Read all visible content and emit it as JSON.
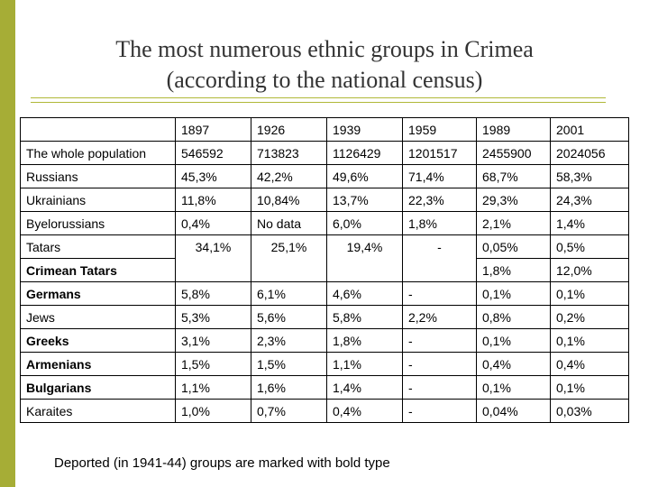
{
  "title": {
    "line1": "The most numerous ethnic groups in Crimea",
    "line2": "(according to the national census)"
  },
  "table": {
    "years": [
      "1897",
      "1926",
      "1939",
      "1959",
      "1989",
      "2001"
    ],
    "whole_population": {
      "label": "The whole population",
      "values": [
        "546592",
        "713823",
        "1126429",
        "1201517",
        "2455900",
        "2024056"
      ]
    },
    "russians": {
      "label": "Russians",
      "values": [
        "45,3%",
        "42,2%",
        "49,6%",
        "71,4%",
        "68,7%",
        "58,3%"
      ]
    },
    "ukrainians": {
      "label": "Ukrainians",
      "values": [
        "11,8%",
        "10,84%",
        "13,7%",
        "22,3%",
        "29,3%",
        "24,3%"
      ]
    },
    "byelorussians": {
      "label": "Byelorussians",
      "values": [
        "0,4%",
        "No data",
        "6,0%",
        "1,8%",
        "2,1%",
        "1,4%"
      ]
    },
    "tatars": {
      "label": "Tatars",
      "values": [
        "34,1%",
        "25,1%",
        "19,4%",
        "-",
        "0,05%",
        "0,5%"
      ]
    },
    "crimean_tatars": {
      "label": "Crimean Tatars",
      "values": [
        "1,8%",
        "12,0%"
      ]
    },
    "germans": {
      "label": "Germans",
      "values": [
        "5,8%",
        "6,1%",
        "4,6%",
        "-",
        "0,1%",
        "0,1%"
      ]
    },
    "jews": {
      "label": "Jews",
      "values": [
        "5,3%",
        "5,6%",
        "5,8%",
        "2,2%",
        "0,8%",
        "0,2%"
      ]
    },
    "greeks": {
      "label": "Greeks",
      "values": [
        "3,1%",
        "2,3%",
        "1,8%",
        "-",
        "0,1%",
        "0,1%"
      ]
    },
    "armenians": {
      "label": "Armenians",
      "values": [
        "1,5%",
        "1,5%",
        "1,1%",
        "-",
        "0,4%",
        "0,4%"
      ]
    },
    "bulgarians": {
      "label": "Bulgarians",
      "values": [
        "1,1%",
        "1,6%",
        "1,4%",
        "-",
        "0,1%",
        "0,1%"
      ]
    },
    "karaites": {
      "label": "Karaites",
      "values": [
        "1,0%",
        "0,7%",
        "0,4%",
        "-",
        "0,04%",
        "0,03%"
      ]
    }
  },
  "footnote": "Deported (in 1941-44) groups are marked with bold type",
  "colors": {
    "accent": "#a6ad36",
    "title_text": "#333333"
  }
}
